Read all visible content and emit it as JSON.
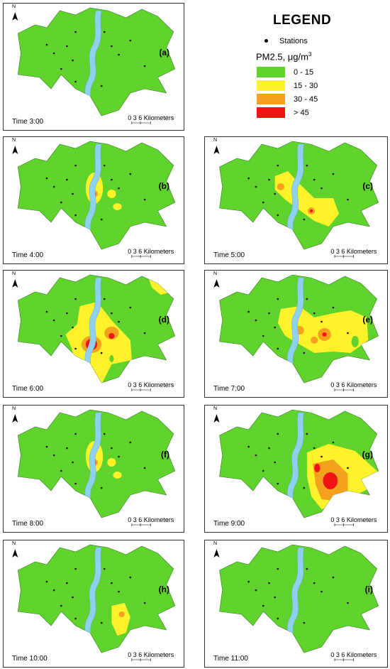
{
  "legend": {
    "title": "LEGEND",
    "stations_label": "Stations",
    "pm_title": "PM2.5, μg/m",
    "pm_unit_exp": "3",
    "bins": [
      {
        "label": "0 - 15",
        "color": "#5fd22c"
      },
      {
        "label": "15 - 30",
        "color": "#fff22b"
      },
      {
        "label": "30 - 45",
        "color": "#f4a21d"
      },
      {
        "label": "> 45",
        "color": "#f01414"
      }
    ]
  },
  "scale_bar": {
    "ticks": [
      "0",
      "3",
      "6"
    ],
    "unit": "Kilometers"
  },
  "north_label": "N",
  "colors": {
    "low": "#5fd22c",
    "moderate": "#fff22b",
    "high": "#f4a21d",
    "very_high": "#f01414",
    "river": "#8fd0ef",
    "outside": "#ffffff"
  },
  "panels": [
    {
      "id": "a",
      "label": "(a)",
      "time": "Time 3:00",
      "pollution": "none"
    },
    {
      "id": "b",
      "label": "(b)",
      "time": "Time 4:00",
      "pollution": "moderate-center"
    },
    {
      "id": "c",
      "label": "(c)",
      "time": "Time 5:00",
      "pollution": "moderate-center-south"
    },
    {
      "id": "d",
      "label": "(d)",
      "time": "Time 6:00",
      "pollution": "high-wide"
    },
    {
      "id": "e",
      "label": "(e)",
      "time": "Time 7:00",
      "pollution": "high-center-east"
    },
    {
      "id": "f",
      "label": "(f)",
      "time": "Time 8:00",
      "pollution": "moderate-center"
    },
    {
      "id": "g",
      "label": "(g)",
      "time": "Time 9:00",
      "pollution": "very-high-southeast"
    },
    {
      "id": "h",
      "label": "(h)",
      "time": "Time 10:00",
      "pollution": "moderate-south"
    },
    {
      "id": "i",
      "label": "(i)",
      "time": "Time 11:00",
      "pollution": "none"
    }
  ]
}
